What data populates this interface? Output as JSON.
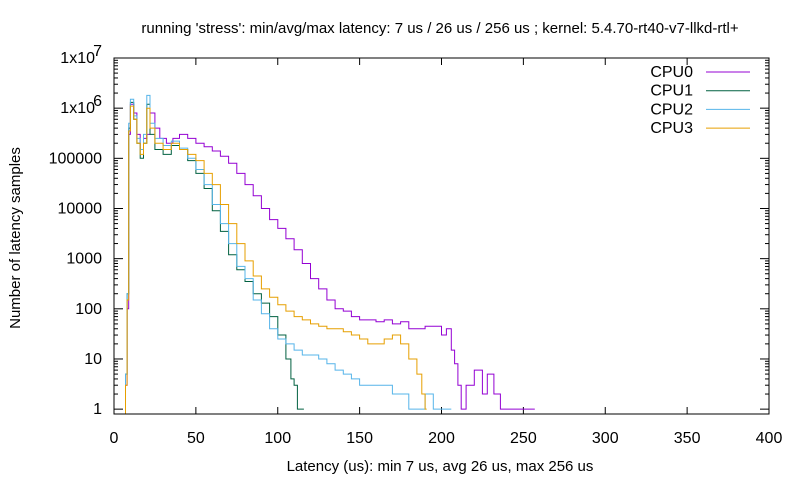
{
  "chart_data": {
    "type": "line",
    "title": "running 'stress': min/avg/max latency: 7 us / 26 us / 256 us ; kernel: 5.4.70-rt40-v7-llkd-rtl+",
    "xlabel": "Latency (us): min 7 us, avg 26 us, max 256 us",
    "ylabel": "Number of latency samples",
    "xlim": [
      0,
      400
    ],
    "ylim": [
      0.8,
      10000000
    ],
    "yscale": "log",
    "x_ticks": [
      "0",
      "50",
      "100",
      "150",
      "200",
      "250",
      "300",
      "350",
      "400"
    ],
    "y_ticks": [
      {
        "value": 1,
        "label": "1"
      },
      {
        "value": 10,
        "label": "10"
      },
      {
        "value": 100,
        "label": "100"
      },
      {
        "value": 1000,
        "label": "1000"
      },
      {
        "value": 10000,
        "label": "10000"
      },
      {
        "value": 100000,
        "label": "100000"
      },
      {
        "value": 1000000,
        "label": "1x10",
        "exp": "6"
      },
      {
        "value": 10000000,
        "label": "1x10",
        "exp": "7"
      }
    ],
    "legend_position": "top-right",
    "series": [
      {
        "name": "CPU0",
        "color": "#9400d3",
        "points": [
          [
            7,
            3
          ],
          [
            8,
            100
          ],
          [
            9,
            300000
          ],
          [
            10,
            1200000
          ],
          [
            12,
            800000
          ],
          [
            14,
            300000
          ],
          [
            16,
            150000
          ],
          [
            18,
            250000
          ],
          [
            20,
            300000
          ],
          [
            22,
            800000
          ],
          [
            25,
            400000
          ],
          [
            28,
            250000
          ],
          [
            32,
            200000
          ],
          [
            36,
            250000
          ],
          [
            40,
            300000
          ],
          [
            45,
            250000
          ],
          [
            50,
            200000
          ],
          [
            55,
            170000
          ],
          [
            60,
            140000
          ],
          [
            65,
            110000
          ],
          [
            70,
            80000
          ],
          [
            75,
            50000
          ],
          [
            80,
            30000
          ],
          [
            85,
            18000
          ],
          [
            90,
            10000
          ],
          [
            95,
            6000
          ],
          [
            100,
            4000
          ],
          [
            105,
            2500
          ],
          [
            110,
            1500
          ],
          [
            115,
            800
          ],
          [
            120,
            400
          ],
          [
            125,
            250
          ],
          [
            130,
            150
          ],
          [
            135,
            100
          ],
          [
            140,
            90
          ],
          [
            145,
            70
          ],
          [
            150,
            60
          ],
          [
            155,
            60
          ],
          [
            160,
            55
          ],
          [
            165,
            60
          ],
          [
            170,
            50
          ],
          [
            175,
            55
          ],
          [
            180,
            40
          ],
          [
            185,
            40
          ],
          [
            190,
            45
          ],
          [
            195,
            45
          ],
          [
            200,
            30
          ],
          [
            203,
            40
          ],
          [
            206,
            15
          ],
          [
            208,
            8
          ],
          [
            210,
            3
          ],
          [
            212,
            1
          ],
          [
            215,
            3
          ],
          [
            220,
            6
          ],
          [
            225,
            2
          ],
          [
            228,
            5
          ],
          [
            232,
            2
          ],
          [
            236,
            1
          ],
          [
            242,
            1
          ],
          [
            250,
            1
          ],
          [
            256,
            1
          ]
        ]
      },
      {
        "name": "CPU1",
        "color": "#006040",
        "points": [
          [
            7,
            5
          ],
          [
            8,
            200
          ],
          [
            9,
            400000
          ],
          [
            10,
            1300000
          ],
          [
            12,
            600000
          ],
          [
            14,
            200000
          ],
          [
            16,
            100000
          ],
          [
            18,
            200000
          ],
          [
            20,
            1200000
          ],
          [
            22,
            300000
          ],
          [
            25,
            150000
          ],
          [
            30,
            120000
          ],
          [
            35,
            180000
          ],
          [
            40,
            150000
          ],
          [
            45,
            90000
          ],
          [
            50,
            50000
          ],
          [
            55,
            25000
          ],
          [
            60,
            9000
          ],
          [
            65,
            3500
          ],
          [
            70,
            1200
          ],
          [
            75,
            600
          ],
          [
            80,
            350
          ],
          [
            85,
            200
          ],
          [
            90,
            130
          ],
          [
            95,
            70
          ],
          [
            100,
            30
          ],
          [
            105,
            10
          ],
          [
            108,
            4
          ],
          [
            110,
            3
          ],
          [
            112,
            1
          ],
          [
            115,
            1
          ]
        ]
      },
      {
        "name": "CPU2",
        "color": "#56b4e9",
        "points": [
          [
            7,
            5
          ],
          [
            8,
            200
          ],
          [
            9,
            500000
          ],
          [
            10,
            1500000
          ],
          [
            12,
            700000
          ],
          [
            14,
            250000
          ],
          [
            16,
            150000
          ],
          [
            18,
            300000
          ],
          [
            20,
            1800000
          ],
          [
            22,
            500000
          ],
          [
            25,
            250000
          ],
          [
            30,
            180000
          ],
          [
            35,
            220000
          ],
          [
            40,
            160000
          ],
          [
            45,
            100000
          ],
          [
            50,
            60000
          ],
          [
            55,
            30000
          ],
          [
            60,
            12000
          ],
          [
            65,
            5000
          ],
          [
            70,
            2000
          ],
          [
            75,
            700
          ],
          [
            80,
            400
          ],
          [
            85,
            150
          ],
          [
            90,
            80
          ],
          [
            95,
            40
          ],
          [
            100,
            25
          ],
          [
            105,
            20
          ],
          [
            110,
            15
          ],
          [
            115,
            12
          ],
          [
            120,
            12
          ],
          [
            125,
            10
          ],
          [
            130,
            8
          ],
          [
            135,
            6
          ],
          [
            140,
            5
          ],
          [
            145,
            4
          ],
          [
            150,
            3
          ],
          [
            155,
            3
          ],
          [
            160,
            3
          ],
          [
            165,
            3
          ],
          [
            170,
            2
          ],
          [
            175,
            2
          ],
          [
            180,
            1
          ],
          [
            185,
            1
          ],
          [
            190,
            2
          ],
          [
            195,
            1
          ],
          [
            200,
            1
          ],
          [
            205,
            1
          ]
        ]
      },
      {
        "name": "CPU3",
        "color": "#e69f00",
        "points": [
          [
            7,
            3
          ],
          [
            8,
            150
          ],
          [
            9,
            350000
          ],
          [
            10,
            1100000
          ],
          [
            12,
            600000
          ],
          [
            14,
            200000
          ],
          [
            16,
            120000
          ],
          [
            18,
            200000
          ],
          [
            20,
            1000000
          ],
          [
            22,
            400000
          ],
          [
            25,
            200000
          ],
          [
            30,
            150000
          ],
          [
            35,
            200000
          ],
          [
            40,
            150000
          ],
          [
            45,
            120000
          ],
          [
            50,
            90000
          ],
          [
            55,
            50000
          ],
          [
            60,
            30000
          ],
          [
            65,
            12000
          ],
          [
            70,
            5000
          ],
          [
            75,
            2000
          ],
          [
            80,
            900
          ],
          [
            85,
            450
          ],
          [
            90,
            250
          ],
          [
            95,
            170
          ],
          [
            100,
            120
          ],
          [
            105,
            90
          ],
          [
            110,
            70
          ],
          [
            115,
            60
          ],
          [
            120,
            50
          ],
          [
            125,
            45
          ],
          [
            130,
            40
          ],
          [
            135,
            40
          ],
          [
            140,
            35
          ],
          [
            145,
            30
          ],
          [
            150,
            25
          ],
          [
            155,
            20
          ],
          [
            160,
            20
          ],
          [
            165,
            25
          ],
          [
            170,
            30
          ],
          [
            175,
            20
          ],
          [
            180,
            10
          ],
          [
            185,
            5
          ],
          [
            188,
            2
          ],
          [
            190,
            1
          ]
        ]
      }
    ]
  }
}
